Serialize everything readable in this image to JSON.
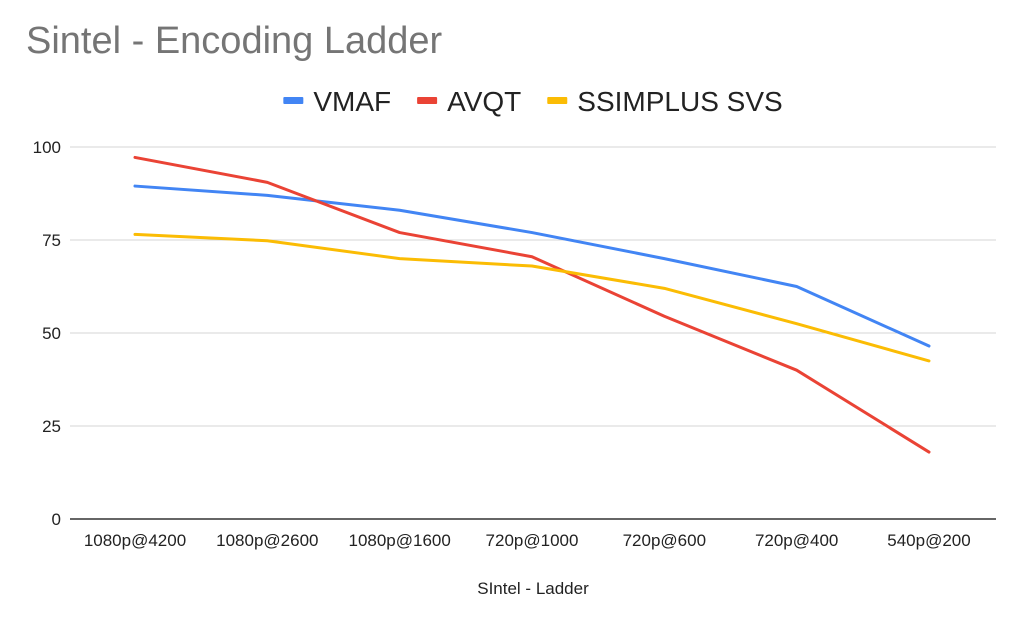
{
  "chart_data": {
    "type": "line",
    "title": "Sintel - Encoding Ladder",
    "xlabel": "SIntel - Ladder",
    "ylabel": "",
    "ylim": [
      0,
      100
    ],
    "yticks": [
      0,
      25,
      50,
      75,
      100
    ],
    "grid": true,
    "legend_position": "top-center",
    "categories": [
      "1080p@4200",
      "1080p@2600",
      "1080p@1600",
      "720p@1000",
      "720p@600",
      "720p@400",
      "540p@200"
    ],
    "series": [
      {
        "name": "VMAF",
        "color": "#4285f4",
        "values": [
          89.5,
          87,
          83,
          77,
          70,
          62.5,
          46.5
        ]
      },
      {
        "name": "AVQT",
        "color": "#ea4335",
        "values": [
          97.2,
          90.5,
          77,
          70.5,
          54.5,
          40,
          18
        ]
      },
      {
        "name": "SSIMPLUS SVS",
        "color": "#fbbc04",
        "values": [
          76.5,
          74.8,
          70,
          68,
          62,
          52.5,
          42.5
        ]
      }
    ]
  }
}
